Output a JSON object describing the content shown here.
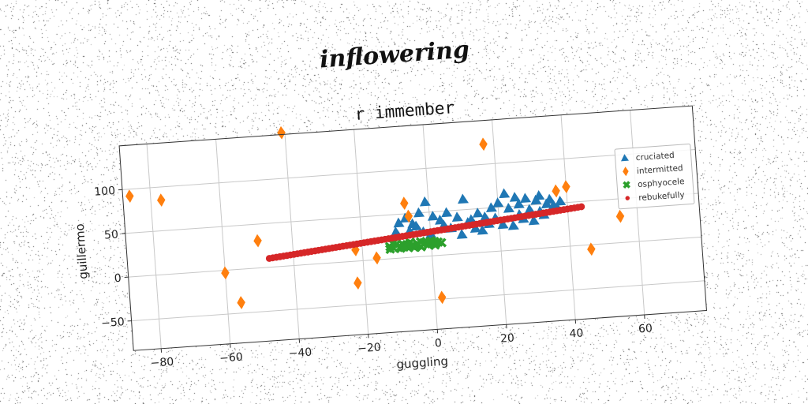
{
  "suptitle": "inflowering",
  "chart_data": {
    "type": "scatter",
    "title": "r immember",
    "xlabel": "guggling",
    "ylabel": "guillermo",
    "xlim": [
      -88,
      78
    ],
    "ylim": [
      -84,
      150
    ],
    "xticks": [
      -80,
      -60,
      -40,
      -20,
      0,
      20,
      40,
      60
    ],
    "yticks": [
      -50,
      0,
      50,
      100
    ],
    "grid": true,
    "legend_position": "right",
    "series": [
      {
        "name": "cruciated",
        "marker": "triangle",
        "color": "#1f77b4",
        "points": [
          [
            -9,
            40
          ],
          [
            -7,
            45
          ],
          [
            -5,
            38
          ],
          [
            -3,
            50
          ],
          [
            -1,
            62
          ],
          [
            1,
            45
          ],
          [
            3,
            40
          ],
          [
            5,
            48
          ],
          [
            8,
            42
          ],
          [
            10,
            62
          ],
          [
            12,
            38
          ],
          [
            14,
            45
          ],
          [
            16,
            40
          ],
          [
            18,
            50
          ],
          [
            20,
            55
          ],
          [
            22,
            65
          ],
          [
            23,
            48
          ],
          [
            25,
            60
          ],
          [
            26,
            52
          ],
          [
            28,
            58
          ],
          [
            29,
            45
          ],
          [
            31,
            55
          ],
          [
            32,
            60
          ],
          [
            34,
            50
          ],
          [
            35,
            55
          ],
          [
            36,
            48
          ],
          [
            38,
            52
          ],
          [
            -6,
            30
          ],
          [
            -4,
            35
          ],
          [
            0,
            25
          ],
          [
            6,
            30
          ],
          [
            9,
            22
          ],
          [
            13,
            28
          ],
          [
            17,
            32
          ],
          [
            21,
            30
          ],
          [
            24,
            28
          ],
          [
            27,
            35
          ],
          [
            30,
            32
          ],
          [
            33,
            38
          ],
          [
            37,
            45
          ],
          [
            -10,
            30
          ],
          [
            -2,
            28
          ],
          [
            4,
            34
          ],
          [
            11,
            35
          ],
          [
            15,
            25
          ],
          [
            19,
            38
          ],
          [
            26,
            40
          ],
          [
            32,
            42
          ]
        ]
      },
      {
        "name": "intermitted",
        "marker": "diamond",
        "color": "#ff7f0e",
        "points": [
          [
            -86,
            92
          ],
          [
            -77,
            85
          ],
          [
            -41,
            152
          ],
          [
            -50,
            31
          ],
          [
            -60,
            -3
          ],
          [
            -56,
            -38
          ],
          [
            -22,
            -25
          ],
          [
            -22,
            13
          ],
          [
            -16,
            2
          ],
          [
            -7,
            62
          ],
          [
            -6,
            47
          ],
          [
            2,
            -48
          ],
          [
            17,
            123
          ],
          [
            37,
            64
          ],
          [
            40,
            68
          ],
          [
            46,
            -5
          ],
          [
            55,
            30
          ]
        ]
      },
      {
        "name": "osphyocele",
        "marker": "x",
        "color": "#2ca02c",
        "points": [
          [
            -12,
            14
          ],
          [
            -11,
            12
          ],
          [
            -10,
            16
          ],
          [
            -9,
            11
          ],
          [
            -8,
            15
          ],
          [
            -7,
            12
          ],
          [
            -6,
            17
          ],
          [
            -5,
            13
          ],
          [
            -4,
            15
          ],
          [
            -3,
            11
          ],
          [
            -2,
            16
          ],
          [
            -1,
            13
          ],
          [
            0,
            14
          ],
          [
            1,
            12
          ],
          [
            2,
            15
          ],
          [
            -11,
            17
          ],
          [
            -9,
            13
          ],
          [
            -7,
            15
          ],
          [
            -5,
            11
          ],
          [
            -3,
            17
          ],
          [
            -1,
            15
          ],
          [
            1,
            16
          ],
          [
            -8,
            12
          ],
          [
            -4,
            13
          ],
          [
            0,
            17
          ],
          [
            3,
            14
          ],
          [
            -12,
            11
          ]
        ]
      },
      {
        "name": "rebukefully",
        "marker": "circle",
        "color": "#d62728",
        "x_start": -47,
        "x_end": 44,
        "y_start": 10,
        "y_end": 44,
        "n": 90
      }
    ]
  }
}
